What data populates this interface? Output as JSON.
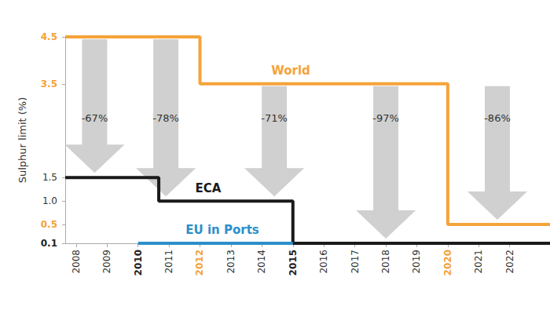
{
  "chart_data": {
    "type": "line",
    "y_label": "Sulphur limit (%)",
    "line_style": "step",
    "xlim": [
      2007.65,
      2023.3
    ],
    "xticks": [
      2008,
      2009,
      2010,
      2011,
      2012,
      2013,
      2014,
      2015,
      2016,
      2017,
      2018,
      2019,
      2020,
      2021,
      2022
    ],
    "ylim": [
      0.1,
      4.5
    ],
    "yticks": [
      0.1,
      0.5,
      {
        "value": 1,
        "label": "1.0"
      },
      1.5,
      3.5,
      4.5
    ],
    "series": [
      {
        "name": "World",
        "color": "#f5a33a",
        "x": [
          2007.65,
          2012,
          2020,
          2023.3
        ],
        "values": [
          4.5,
          3.5,
          0.5,
          0.5
        ]
      },
      {
        "name": "ECA",
        "color": "#1a1a1a",
        "x": [
          2007.65,
          2010.67,
          2015,
          2023.3
        ],
        "values": [
          1.5,
          1.0,
          0.1,
          0.1
        ]
      },
      {
        "name": "EU in Ports",
        "color": "#2b8fcb",
        "x": [
          2010,
          2015
        ],
        "values": [
          0.1,
          0.1
        ]
      }
    ],
    "annotations": [
      {
        "text": "-67%",
        "x": 2008.6,
        "from": 4.5,
        "to": 1.5
      },
      {
        "text": "-78%",
        "x": 2010.9,
        "from": 4.5,
        "to": 1.0
      },
      {
        "text": "-71%",
        "x": 2014.4,
        "from": 3.5,
        "to": 1.0
      },
      {
        "text": "-97%",
        "x": 2018.0,
        "from": 3.5,
        "to": 0.1
      },
      {
        "text": "-86%",
        "x": 2021.6,
        "from": 3.5,
        "to": 0.5
      }
    ]
  }
}
